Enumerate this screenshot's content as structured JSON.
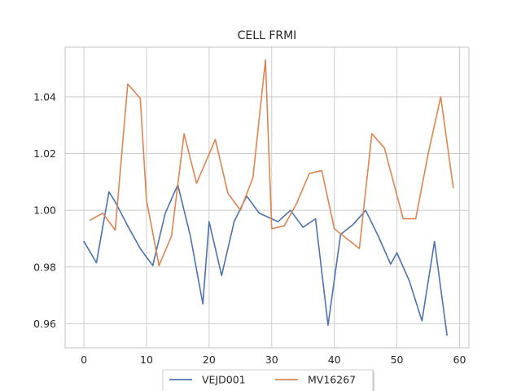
{
  "chart_data": {
    "type": "line",
    "title": "CELL FRMI",
    "xlabel": "",
    "ylabel": "",
    "xlim": [
      -3,
      61.5
    ],
    "ylim": [
      0.9515,
      1.0575
    ],
    "xticks": [
      0,
      10,
      20,
      30,
      40,
      50,
      60
    ],
    "xtick_labels": [
      "0",
      "10",
      "20",
      "30",
      "40",
      "50",
      "60"
    ],
    "yticks": [
      0.96,
      0.98,
      1.0,
      1.02,
      1.04
    ],
    "ytick_labels": [
      "0.96",
      "0.98",
      "1.00",
      "1.02",
      "1.04"
    ],
    "grid": true,
    "legend_position": "bottom-center",
    "series": [
      {
        "name": "VEJD001",
        "color": "#4c72b0",
        "x": [
          0,
          2,
          4,
          5,
          7,
          9,
          11,
          13,
          15,
          17,
          19,
          20,
          22,
          24,
          26,
          28,
          31,
          33,
          35,
          37,
          39,
          41,
          43,
          45,
          47,
          49,
          50,
          52,
          54,
          56,
          58
        ],
        "y": [
          0.989,
          0.9815,
          1.0065,
          1.003,
          0.9945,
          0.9865,
          0.9805,
          0.999,
          1.009,
          0.991,
          0.967,
          0.996,
          0.977,
          0.996,
          1.005,
          0.999,
          0.996,
          1.0,
          0.994,
          0.997,
          0.9595,
          0.9915,
          0.995,
          1.0,
          0.991,
          0.981,
          0.985,
          0.975,
          0.961,
          0.989,
          0.956
        ]
      },
      {
        "name": "MV16267",
        "color": "#dd8452",
        "x": [
          1,
          3,
          5,
          7,
          9,
          10,
          12,
          14,
          16,
          18,
          21,
          23,
          25,
          27,
          29,
          30,
          32,
          34,
          36,
          38,
          40,
          42,
          44,
          46,
          48,
          51,
          53,
          55,
          57,
          59
        ],
        "y": [
          0.9965,
          0.999,
          0.993,
          1.0445,
          1.0395,
          1.0035,
          0.9805,
          0.991,
          1.027,
          1.0095,
          1.025,
          1.006,
          1.0,
          1.0115,
          1.053,
          0.9935,
          0.9945,
          1.0025,
          1.013,
          1.014,
          0.9935,
          0.99,
          0.9865,
          1.027,
          1.022,
          0.997,
          0.997,
          1.02,
          1.04,
          1.008
        ]
      }
    ]
  }
}
